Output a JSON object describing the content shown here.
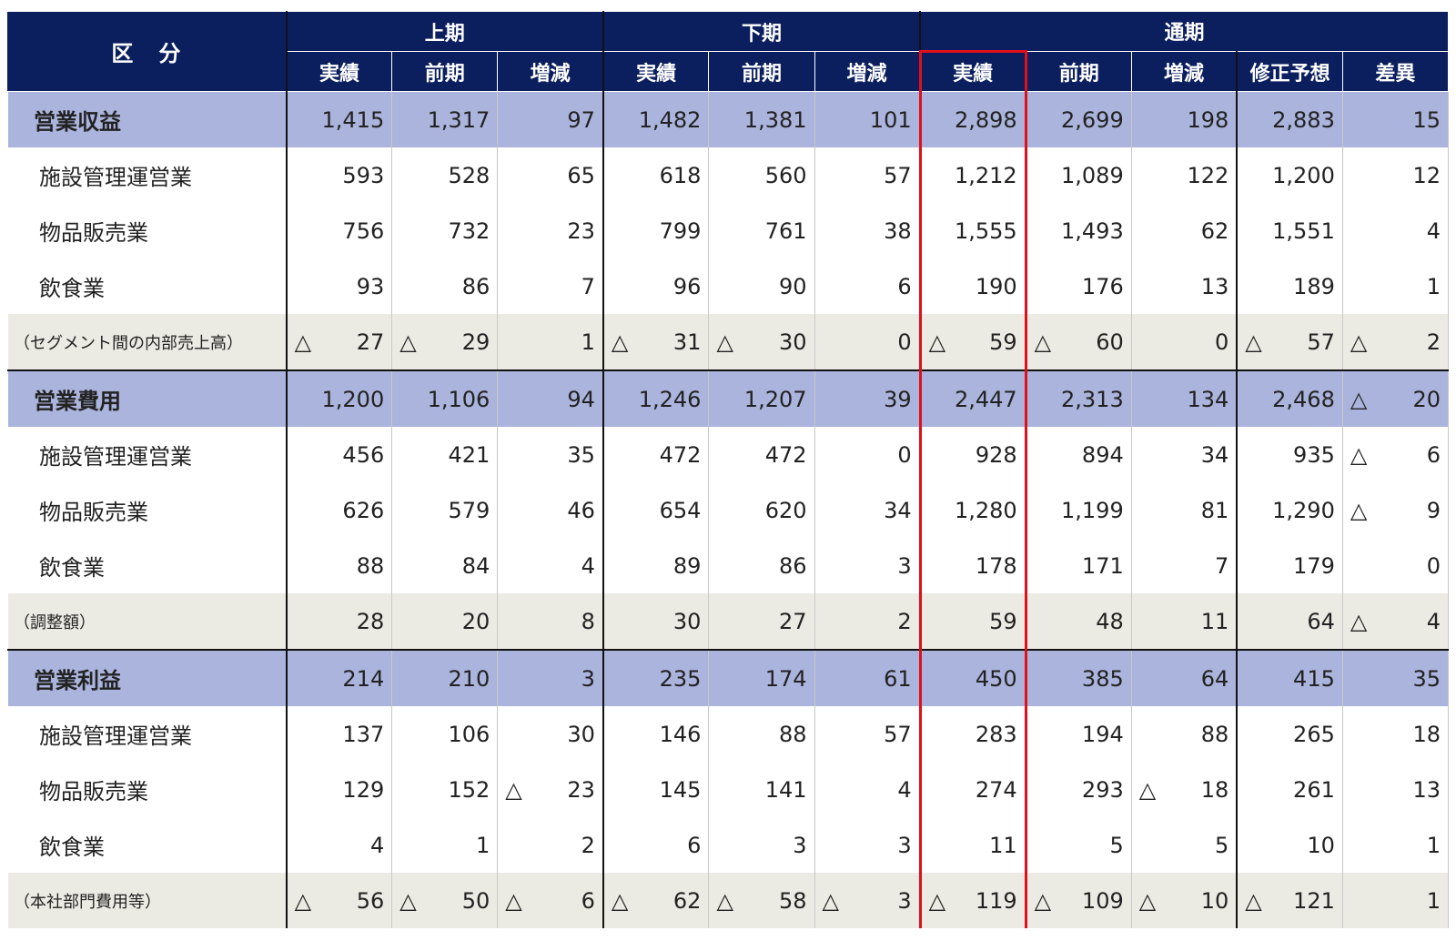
{
  "table": {
    "header": {
      "label": "区　分",
      "groups": [
        "上期",
        "下期",
        "通期"
      ],
      "columns": [
        "実績",
        "前期",
        "増減",
        "実績",
        "前期",
        "増減",
        "実績",
        "前期",
        "増減",
        "修正予想",
        "差異"
      ]
    },
    "rows": [
      {
        "label": "営業収益",
        "cells": [
          "1,415",
          "1,317",
          "97",
          "1,482",
          "1,381",
          "101",
          "2,898",
          "2,699",
          "198",
          "2,883",
          "15"
        ]
      },
      {
        "label": "施設管理運営業",
        "cells": [
          "593",
          "528",
          "65",
          "618",
          "560",
          "57",
          "1,212",
          "1,089",
          "122",
          "1,200",
          "12"
        ]
      },
      {
        "label": "物品販売業",
        "cells": [
          "756",
          "732",
          "23",
          "799",
          "761",
          "38",
          "1,555",
          "1,493",
          "62",
          "1,551",
          "4"
        ]
      },
      {
        "label": "飲食業",
        "cells": [
          "93",
          "86",
          "7",
          "96",
          "90",
          "6",
          "190",
          "176",
          "13",
          "189",
          "1"
        ]
      },
      {
        "label": "（セグメント間の内部売上高）",
        "cells": [
          {
            "sign": "△",
            "value": "27"
          },
          {
            "sign": "△",
            "value": "29"
          },
          "1",
          {
            "sign": "△",
            "value": "31"
          },
          {
            "sign": "△",
            "value": "30"
          },
          "0",
          {
            "sign": "△",
            "value": "59"
          },
          {
            "sign": "△",
            "value": "60"
          },
          "0",
          {
            "sign": "△",
            "value": "57"
          },
          {
            "sign": "△",
            "value": "2"
          }
        ]
      },
      {
        "label": "営業費用",
        "cells": [
          "1,200",
          "1,106",
          "94",
          "1,246",
          "1,207",
          "39",
          "2,447",
          "2,313",
          "134",
          "2,468",
          {
            "sign": "△",
            "value": "20"
          }
        ]
      },
      {
        "label": "施設管理運営業",
        "cells": [
          "456",
          "421",
          "35",
          "472",
          "472",
          "0",
          "928",
          "894",
          "34",
          "935",
          {
            "sign": "△",
            "value": "6"
          }
        ]
      },
      {
        "label": "物品販売業",
        "cells": [
          "626",
          "579",
          "46",
          "654",
          "620",
          "34",
          "1,280",
          "1,199",
          "81",
          "1,290",
          {
            "sign": "△",
            "value": "9"
          }
        ]
      },
      {
        "label": "飲食業",
        "cells": [
          "88",
          "84",
          "4",
          "89",
          "86",
          "3",
          "178",
          "171",
          "7",
          "179",
          "0"
        ]
      },
      {
        "label": "（調整額）",
        "cells": [
          "28",
          "20",
          "8",
          "30",
          "27",
          "2",
          "59",
          "48",
          "11",
          "64",
          {
            "sign": "△",
            "value": "4"
          }
        ]
      },
      {
        "label": "営業利益",
        "cells": [
          "214",
          "210",
          "3",
          "235",
          "174",
          "61",
          "450",
          "385",
          "64",
          "415",
          "35"
        ]
      },
      {
        "label": "施設管理運営業",
        "cells": [
          "137",
          "106",
          "30",
          "146",
          "88",
          "57",
          "283",
          "194",
          "88",
          "265",
          "18"
        ]
      },
      {
        "label": "物品販売業",
        "cells": [
          "129",
          "152",
          {
            "sign": "△",
            "value": "23"
          },
          "145",
          "141",
          "4",
          "274",
          "293",
          {
            "sign": "△",
            "value": "18"
          },
          "261",
          "13"
        ]
      },
      {
        "label": "飲食業",
        "cells": [
          "4",
          "1",
          "2",
          "6",
          "3",
          "3",
          "11",
          "5",
          "5",
          "10",
          "1"
        ]
      },
      {
        "label": "（本社部門費用等）",
        "cells": [
          {
            "sign": "△",
            "value": "56"
          },
          {
            "sign": "△",
            "value": "50"
          },
          {
            "sign": "△",
            "value": "6"
          },
          {
            "sign": "△",
            "value": "62"
          },
          {
            "sign": "△",
            "value": "58"
          },
          {
            "sign": "△",
            "value": "3"
          },
          {
            "sign": "△",
            "value": "119"
          },
          {
            "sign": "△",
            "value": "109"
          },
          {
            "sign": "△",
            "value": "10"
          },
          {
            "sign": "△",
            "value": "121"
          },
          "1"
        ]
      }
    ]
  }
}
